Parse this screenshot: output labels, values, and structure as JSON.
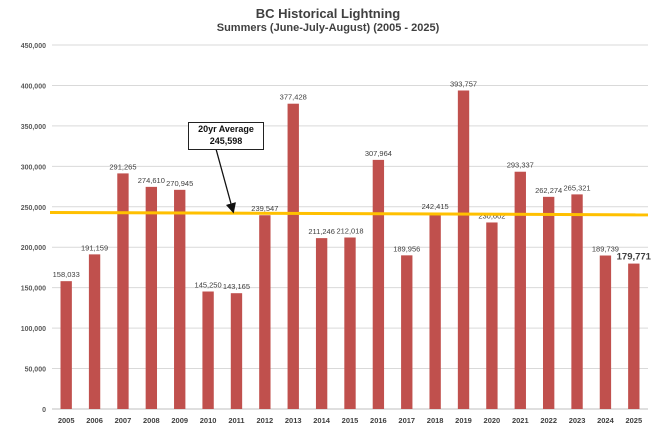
{
  "chart_data": {
    "type": "bar",
    "title": "BC Historical Lightning",
    "subtitle": "Summers (June-July-August) (2005 - 2025)",
    "categories": [
      "2005",
      "2006",
      "2007",
      "2008",
      "2009",
      "2010",
      "2011",
      "2012",
      "2013",
      "2014",
      "2015",
      "2016",
      "2017",
      "2018",
      "2019",
      "2020",
      "2021",
      "2022",
      "2023",
      "2024",
      "2025"
    ],
    "values": [
      158033,
      191159,
      291265,
      274610,
      270945,
      145250,
      143165,
      239547,
      377428,
      211246,
      212018,
      307964,
      189956,
      242415,
      393757,
      230602,
      293337,
      262274,
      265321,
      189739,
      179771
    ],
    "value_labels": [
      "158,033",
      "191,159",
      "291,265",
      "274,610",
      "270,945",
      "145,250",
      "143,165",
      "239,547",
      "377,428",
      "211,246",
      "212,018",
      "307,964",
      "189,956",
      "242,415",
      "393,757",
      "230,602",
      "293,337",
      "262,274",
      "265,321",
      "189,739",
      "179,771"
    ],
    "ylim": [
      0,
      450000
    ],
    "yticks": [
      0,
      50000,
      100000,
      150000,
      200000,
      250000,
      300000,
      350000,
      400000,
      450000
    ],
    "ytick_labels": [
      "0",
      "50,000",
      "100,000",
      "150,000",
      "200,000",
      "250,000",
      "300,000",
      "350,000",
      "400,000",
      "450,000"
    ],
    "grid": true,
    "bar_color": "#C0504D",
    "average_line": {
      "y_start": 243000,
      "y_end": 240000,
      "color": "#FFC000"
    },
    "annotation": {
      "line1": "20yr Average",
      "line2": "245,598"
    }
  }
}
